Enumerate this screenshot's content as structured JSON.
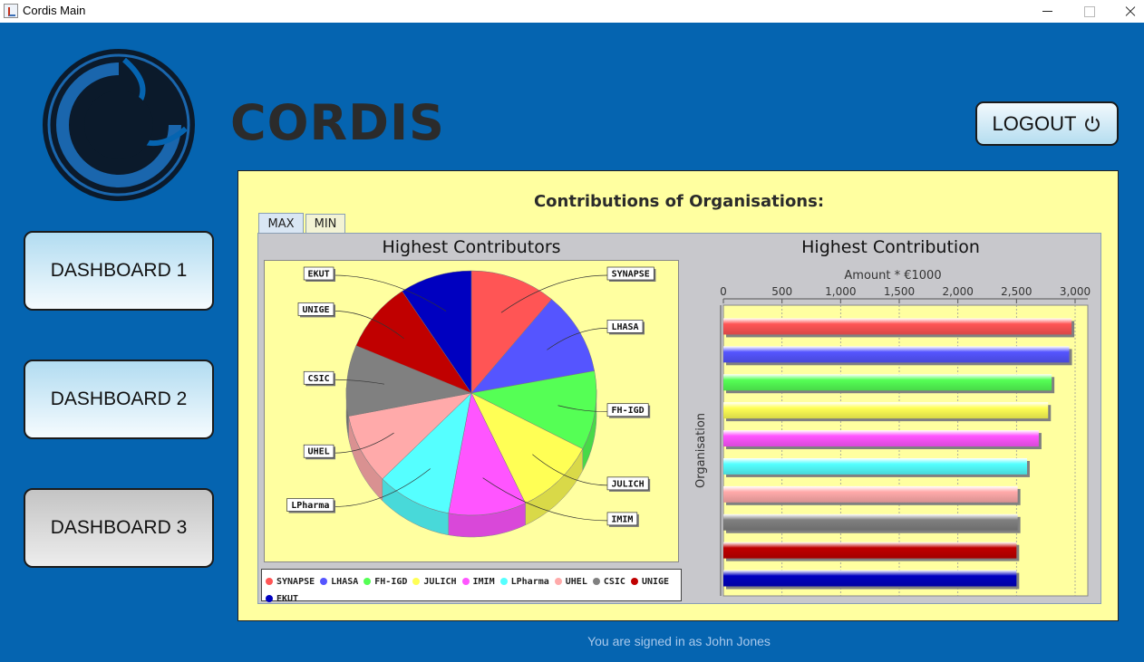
{
  "window": {
    "title": "Cordis Main"
  },
  "header": {
    "brand": "CORDIS",
    "logout_label": "LOGOUT"
  },
  "sidebar": {
    "buttons": [
      {
        "label": "DASHBOARD 1"
      },
      {
        "label": "DASHBOARD 2"
      },
      {
        "label": "DASHBOARD 3"
      }
    ]
  },
  "main": {
    "title": "Contributions of Organisations:",
    "tabs": [
      {
        "label": "MAX"
      },
      {
        "label": "MIN"
      }
    ],
    "active_tab": "MAX"
  },
  "footer": {
    "signed_in_text": "You are signed in as John Jones"
  },
  "colors": {
    "SYNAPSE": "#ff5555",
    "LHASA": "#5555ff",
    "FH-IGD": "#55ff55",
    "JULICH": "#ffff55",
    "IMIM": "#ff55ff",
    "LPharma": "#55ffff",
    "UHEL": "#ffaaaa",
    "CSIC": "#808080",
    "UNIGE": "#c00000",
    "EKUT": "#0000c0"
  },
  "chart_data": [
    {
      "type": "pie",
      "title": "Highest Contributors",
      "categories": [
        "SYNAPSE",
        "LHASA",
        "FH-IGD",
        "JULICH",
        "IMIM",
        "LPharma",
        "UHEL",
        "CSIC",
        "UNIGE",
        "EKUT"
      ],
      "values": [
        2970,
        2950,
        2800,
        2770,
        2690,
        2590,
        2510,
        2510,
        2500,
        2500
      ],
      "legend": "bottom"
    },
    {
      "type": "bar",
      "orientation": "horizontal",
      "title": "Highest Contribution",
      "xlabel": "Amount * €1000",
      "ylabel": "Organisation",
      "categories": [
        "SYNAPSE",
        "LHASA",
        "FH-IGD",
        "JULICH",
        "IMIM",
        "LPharma",
        "UHEL",
        "CSIC",
        "UNIGE",
        "EKUT"
      ],
      "values": [
        2970,
        2950,
        2800,
        2770,
        2690,
        2590,
        2510,
        2510,
        2500,
        2500
      ],
      "xlim": [
        0,
        3000
      ],
      "xticks": [
        "0",
        "500",
        "1,000",
        "1,500",
        "2,000",
        "2,500",
        "3,000"
      ],
      "grid": true
    }
  ]
}
